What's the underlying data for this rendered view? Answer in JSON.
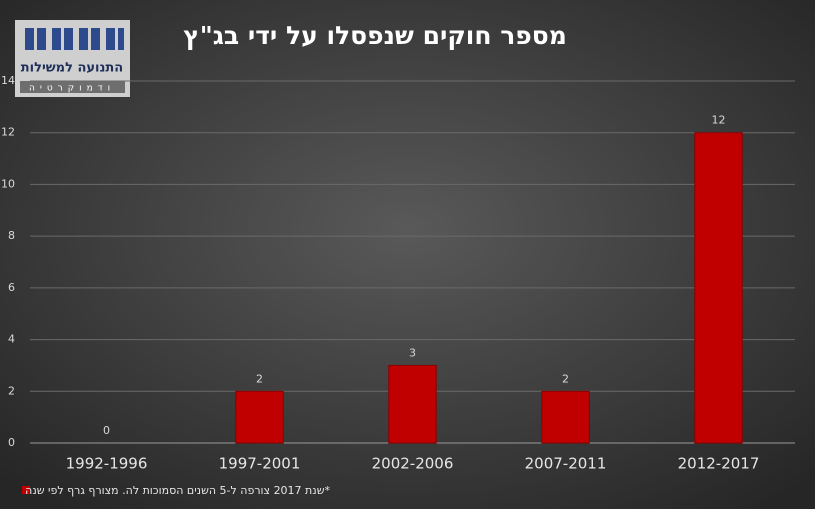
{
  "chart_data": {
    "type": "bar",
    "title": "מספר חוקים שנפסלו על ידי בג\"ץ",
    "logo_title": "התנועה למשילות",
    "logo_subtitle": "ודמוקרטיה",
    "categories": [
      "1992-1996",
      "1997-2001",
      "2002-2006",
      "2007-2011",
      "2012-2017"
    ],
    "series": [
      {
        "name": "*שנת 2017 צורפה ל-5 השנים הסמוכות לה. מצורף גרף לפי שנה",
        "color": "#c00000",
        "values": [
          0,
          2,
          3,
          2,
          12
        ]
      }
    ],
    "ylim": [
      0,
      14
    ],
    "yticks": [
      0,
      2,
      4,
      6,
      8,
      10,
      12,
      14
    ],
    "grid": true,
    "legend": "bottom-left"
  }
}
